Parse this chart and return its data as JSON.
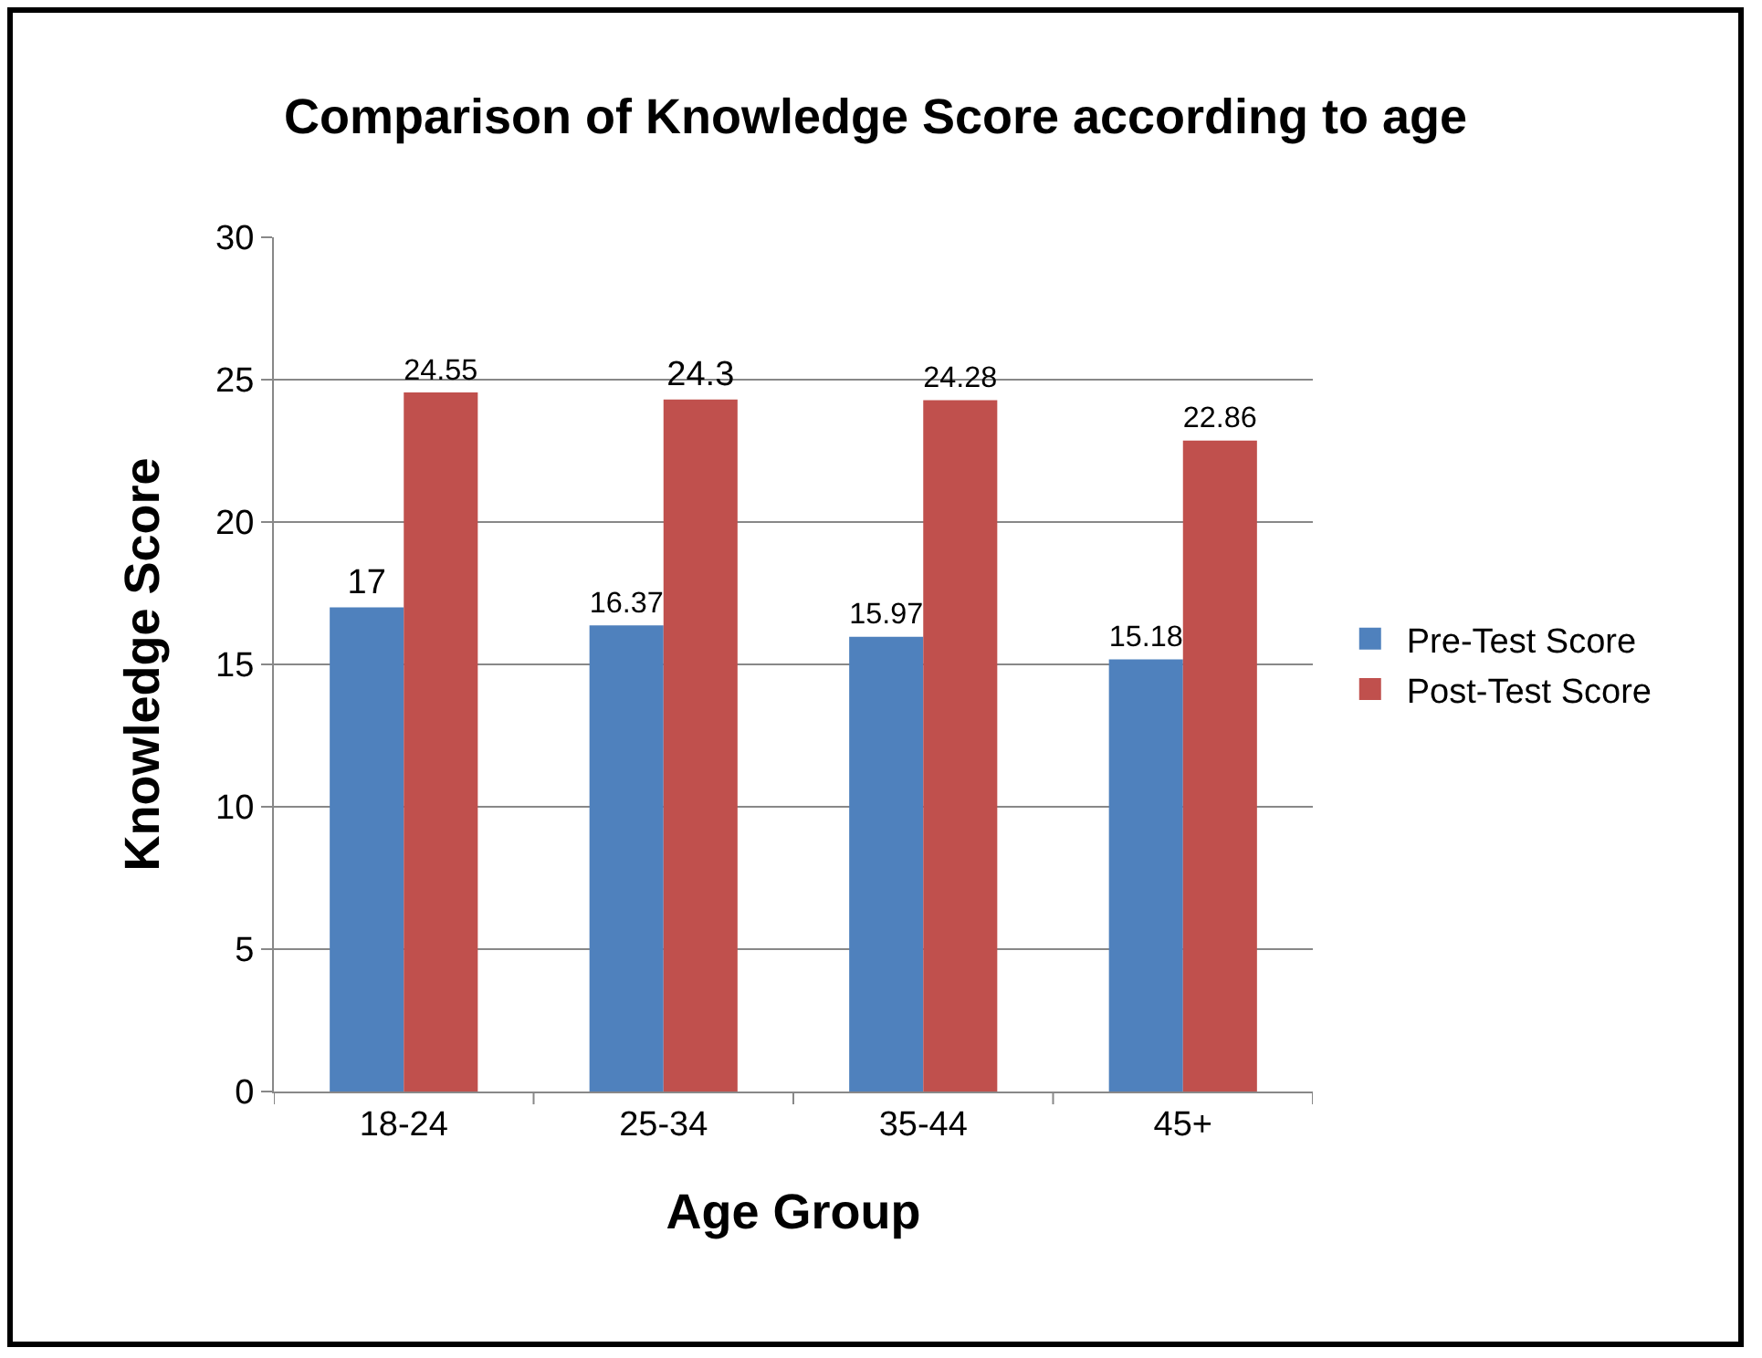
{
  "chart_data": {
    "type": "bar",
    "title": "Comparison of Knowledge Score according to age",
    "xlabel": "Age Group",
    "ylabel": "Knowledge Score",
    "categories": [
      "18-24",
      "25-34",
      "35-44",
      "45+"
    ],
    "series": [
      {
        "name": "Pre-Test Score",
        "color": "#4f81bd",
        "values": [
          17,
          16.37,
          15.97,
          15.18
        ]
      },
      {
        "name": "Post-Test Score",
        "color": "#c0504d",
        "values": [
          24.55,
          24.3,
          24.28,
          22.86
        ]
      }
    ],
    "ylim": [
      0,
      30
    ],
    "yticks": [
      0,
      5,
      10,
      15,
      20,
      25,
      30
    ],
    "grid": "y",
    "legend": "right",
    "data_labels": true
  }
}
